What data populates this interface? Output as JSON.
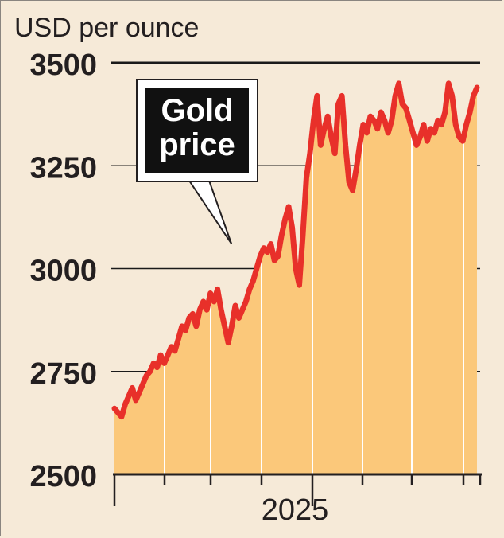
{
  "chart_data": {
    "type": "area",
    "title": "",
    "unit_label": "USD per ounce",
    "xlabel": "",
    "ylabel": "USD per ounce",
    "x_tick_labels": [
      "2025"
    ],
    "yticks": [
      2500,
      2750,
      3000,
      3250,
      3500
    ],
    "ytick_labels": [
      "2500",
      "2750",
      "3000",
      "3250",
      "3500"
    ],
    "ylim": [
      2500,
      3500
    ],
    "grid": true,
    "annotation": {
      "line1": "Gold",
      "line2": "price"
    },
    "series": [
      {
        "name": "Gold price",
        "values": [
          2660,
          2650,
          2640,
          2670,
          2690,
          2710,
          2680,
          2700,
          2720,
          2740,
          2750,
          2770,
          2760,
          2790,
          2770,
          2790,
          2810,
          2800,
          2830,
          2860,
          2850,
          2880,
          2890,
          2860,
          2900,
          2920,
          2900,
          2940,
          2920,
          2950,
          2900,
          2860,
          2820,
          2860,
          2910,
          2880,
          2900,
          2920,
          2950,
          2970,
          3000,
          3030,
          3050,
          3040,
          3060,
          3020,
          3030,
          3080,
          3120,
          3150,
          3100,
          3000,
          2960,
          3080,
          3220,
          3280,
          3360,
          3420,
          3300,
          3340,
          3370,
          3320,
          3280,
          3400,
          3420,
          3300,
          3210,
          3190,
          3240,
          3300,
          3350,
          3330,
          3370,
          3360,
          3340,
          3380,
          3360,
          3330,
          3360,
          3420,
          3450,
          3400,
          3390,
          3360,
          3330,
          3300,
          3320,
          3350,
          3310,
          3340,
          3330,
          3360,
          3350,
          3380,
          3450,
          3420,
          3350,
          3320,
          3310,
          3350,
          3380,
          3420,
          3440
        ],
        "color": "#e8302a"
      }
    ],
    "colors": {
      "line": "#e8302a",
      "area": "#fbc87a",
      "background": "#f6ead8",
      "gridline": "#1a1a1a"
    }
  }
}
